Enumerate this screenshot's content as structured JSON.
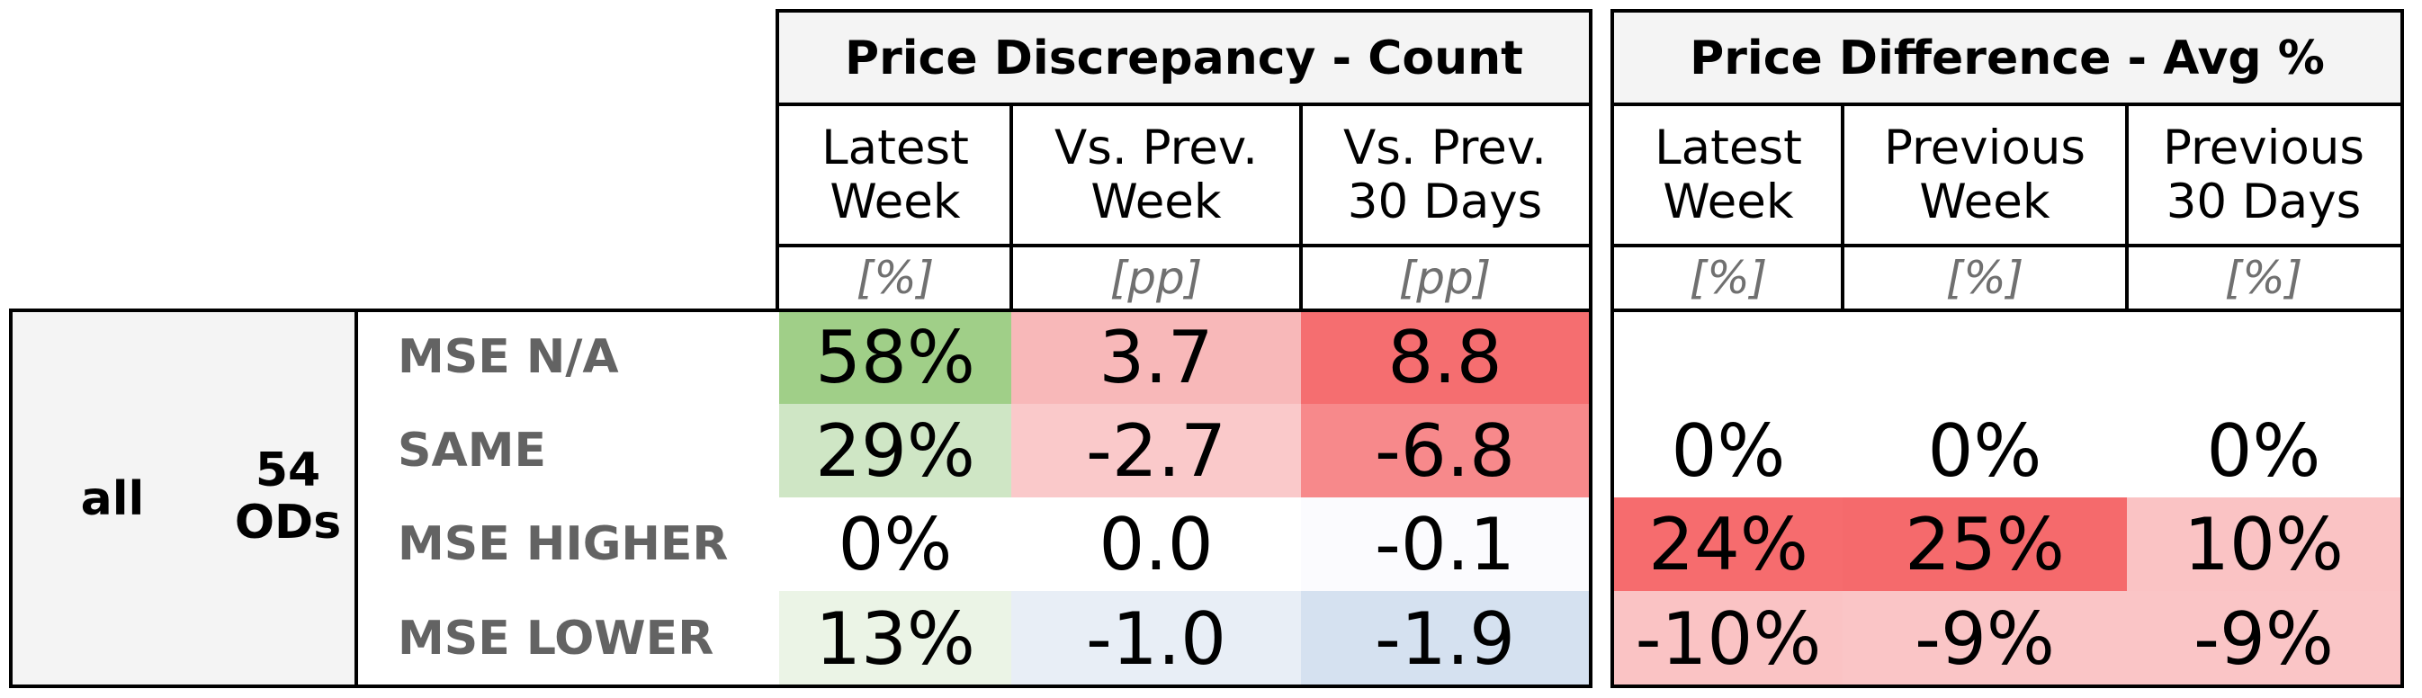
{
  "table": {
    "group_label_1": "all",
    "group_label_2": "54",
    "group_label_3": "ODs",
    "sections": [
      {
        "title": "Price Discrepancy - Count",
        "columns": [
          {
            "label": "Latest\nWeek",
            "unit": "[%]"
          },
          {
            "label": "Vs. Prev.\nWeek",
            "unit": "[pp]"
          },
          {
            "label": "Vs. Prev.\n30 Days",
            "unit": "[pp]"
          }
        ]
      },
      {
        "title": "Price Difference - Avg %",
        "columns": [
          {
            "label": "Latest\nWeek",
            "unit": "[%]"
          },
          {
            "label": "Previous\nWeek",
            "unit": "[%]"
          },
          {
            "label": "Previous\n30 Days",
            "unit": "[%]"
          }
        ]
      }
    ],
    "rows": [
      {
        "label": "MSE N/A",
        "count": [
          "58%",
          "3.7",
          "8.8"
        ],
        "diff": [
          "",
          "",
          ""
        ]
      },
      {
        "label": "SAME",
        "count": [
          "29%",
          "-2.7",
          "-6.8"
        ],
        "diff": [
          "0%",
          "0%",
          "0%"
        ]
      },
      {
        "label": "MSE HIGHER",
        "count": [
          "0%",
          "0.0",
          "-0.1"
        ],
        "diff": [
          "24%",
          "25%",
          "10%"
        ]
      },
      {
        "label": "MSE LOWER",
        "count": [
          "13%",
          "-1.0",
          "-1.9"
        ],
        "diff": [
          "-10%",
          "-9%",
          "-9%"
        ]
      }
    ],
    "colors": {
      "count": [
        [
          "#a0cf88",
          "#f8b8b9",
          "#f56e70"
        ],
        [
          "#cfe6c5",
          "#fac9ca",
          "#f7898b"
        ],
        [
          "#ffffff",
          "#ffffff",
          "#fbfbfe"
        ],
        [
          "#ebf4e6",
          "#e8eef6",
          "#d5e1f0"
        ]
      ],
      "diff": [
        [
          "#ffffff",
          "#ffffff",
          "#ffffff"
        ],
        [
          "#ffffff",
          "#ffffff",
          "#ffffff"
        ],
        [
          "#f66c6e",
          "#f56a6c",
          "#fac3c4"
        ],
        [
          "#fac3c4",
          "#fac5c6",
          "#fac5c6"
        ]
      ]
    }
  },
  "chart_data": {
    "type": "table",
    "row_group": [
      "all",
      "54 ODs"
    ],
    "row_labels": [
      "MSE N/A",
      "SAME",
      "MSE HIGHER",
      "MSE LOWER"
    ],
    "column_groups": [
      "Price Discrepancy - Count",
      "Price Difference - Avg %"
    ],
    "columns": [
      "Latest Week [%]",
      "Vs. Prev. Week [pp]",
      "Vs. Prev. 30 Days [pp]",
      "Latest Week [%]",
      "Previous Week [%]",
      "Previous 30 Days [%]"
    ],
    "values": [
      [
        58,
        3.7,
        8.8,
        null,
        null,
        null
      ],
      [
        29,
        -2.7,
        -6.8,
        0,
        0,
        0
      ],
      [
        0,
        0.0,
        -0.1,
        24,
        25,
        10
      ],
      [
        13,
        -1.0,
        -1.9,
        -10,
        -9,
        -9
      ]
    ]
  }
}
